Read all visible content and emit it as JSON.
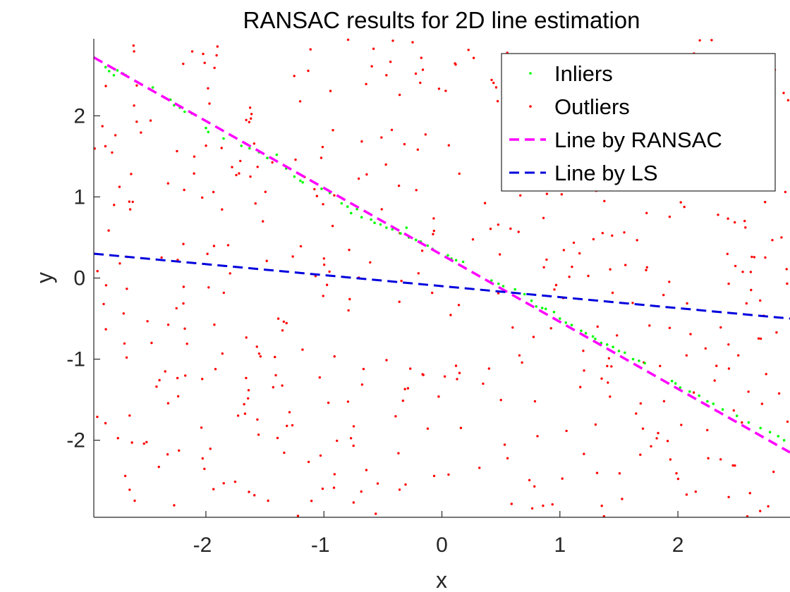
{
  "chart_data": {
    "type": "scatter",
    "title": "RANSAC results for 2D line estimation",
    "xlabel": "x",
    "ylabel": "y",
    "xlim": [
      -2.95,
      2.95
    ],
    "ylim": [
      -2.95,
      2.95
    ],
    "xticks": [
      -2,
      -1,
      0,
      1,
      2
    ],
    "yticks": [
      -2,
      -1,
      0,
      1,
      2
    ],
    "xtick_labels": [
      "-2",
      "-1",
      "0",
      "1",
      "2"
    ],
    "ytick_labels": [
      "-2",
      "-1",
      "0",
      "1",
      "2"
    ],
    "legend_position": "top-right",
    "series": [
      {
        "name": "Inliers",
        "kind": "points",
        "color": "#00ff00",
        "points": [
          [
            -2.85,
            2.6
          ],
          [
            -2.82,
            2.55
          ],
          [
            -2.78,
            2.5
          ],
          [
            -2.75,
            2.56
          ],
          [
            -2.7,
            2.52
          ],
          [
            -2.68,
            2.5
          ],
          [
            -2.45,
            2.35
          ],
          [
            -2.3,
            2.2
          ],
          [
            -2.27,
            2.13
          ],
          [
            -2.22,
            2.1
          ],
          [
            -2.18,
            2.05
          ],
          [
            -2.12,
            2.03
          ],
          [
            -2.0,
            1.85
          ],
          [
            -1.98,
            1.8
          ],
          [
            -1.85,
            1.72
          ],
          [
            -1.7,
            1.63
          ],
          [
            -1.63,
            1.6
          ],
          [
            -1.55,
            1.55
          ],
          [
            -1.48,
            1.48
          ],
          [
            -1.4,
            1.52
          ],
          [
            -1.32,
            1.35
          ],
          [
            -1.25,
            1.25
          ],
          [
            -1.2,
            1.2
          ],
          [
            -1.18,
            1.18
          ],
          [
            -1.02,
            1.1
          ],
          [
            -0.95,
            1.05
          ],
          [
            -0.85,
            0.92
          ],
          [
            -0.8,
            0.88
          ],
          [
            -0.77,
            0.8
          ],
          [
            -0.72,
            0.85
          ],
          [
            -0.68,
            0.75
          ],
          [
            -0.6,
            0.72
          ],
          [
            -0.57,
            0.68
          ],
          [
            -0.52,
            0.66
          ],
          [
            -0.47,
            0.62
          ],
          [
            -0.42,
            0.6
          ],
          [
            -0.35,
            0.55
          ],
          [
            -0.3,
            0.62
          ],
          [
            -0.28,
            0.5
          ],
          [
            -0.22,
            0.47
          ],
          [
            -0.18,
            0.45
          ],
          [
            -0.12,
            0.4
          ],
          [
            -0.08,
            0.36
          ],
          [
            0.05,
            0.28
          ],
          [
            0.08,
            0.24
          ],
          [
            0.12,
            0.22
          ],
          [
            0.18,
            0.2
          ],
          [
            0.42,
            -0.03
          ],
          [
            0.48,
            -0.07
          ],
          [
            0.52,
            -0.1
          ],
          [
            0.62,
            -0.14
          ],
          [
            0.7,
            -0.2
          ],
          [
            0.76,
            -0.28
          ],
          [
            0.8,
            -0.35
          ],
          [
            0.85,
            -0.37
          ],
          [
            0.88,
            -0.38
          ],
          [
            0.95,
            -0.42
          ],
          [
            1.0,
            -0.5
          ],
          [
            1.05,
            -0.55
          ],
          [
            1.1,
            -0.58
          ],
          [
            1.18,
            -0.65
          ],
          [
            1.22,
            -0.68
          ],
          [
            1.28,
            -0.72
          ],
          [
            1.3,
            -0.75
          ],
          [
            1.35,
            -0.8
          ],
          [
            1.4,
            -0.82
          ],
          [
            1.45,
            -0.85
          ],
          [
            1.5,
            -0.9
          ],
          [
            1.55,
            -0.92
          ],
          [
            1.62,
            -1.0
          ],
          [
            1.67,
            -1.02
          ],
          [
            1.72,
            -1.05
          ],
          [
            1.95,
            -1.27
          ],
          [
            1.98,
            -1.3
          ],
          [
            2.02,
            -1.35
          ],
          [
            2.1,
            -1.4
          ],
          [
            2.18,
            -1.45
          ],
          [
            2.25,
            -1.52
          ],
          [
            2.3,
            -1.55
          ],
          [
            2.38,
            -1.62
          ],
          [
            2.5,
            -1.7
          ],
          [
            2.6,
            -1.78
          ],
          [
            2.7,
            -1.85
          ],
          [
            2.78,
            -1.9
          ],
          [
            2.85,
            -1.95
          ],
          [
            2.9,
            -2.0
          ]
        ]
      },
      {
        "name": "Outliers",
        "kind": "points",
        "color": "#ff0000",
        "points": []
      },
      {
        "name": "Line by RANSAC",
        "kind": "line",
        "color": "#ff00ff",
        "dash": "dashed",
        "x": [
          -2.95,
          2.95
        ],
        "y": [
          2.72,
          -2.15
        ]
      },
      {
        "name": "Line by LS",
        "kind": "line",
        "color": "#0000dd",
        "dash": "dashed",
        "x": [
          -2.95,
          2.95
        ],
        "y": [
          0.3,
          -0.5
        ]
      }
    ]
  }
}
